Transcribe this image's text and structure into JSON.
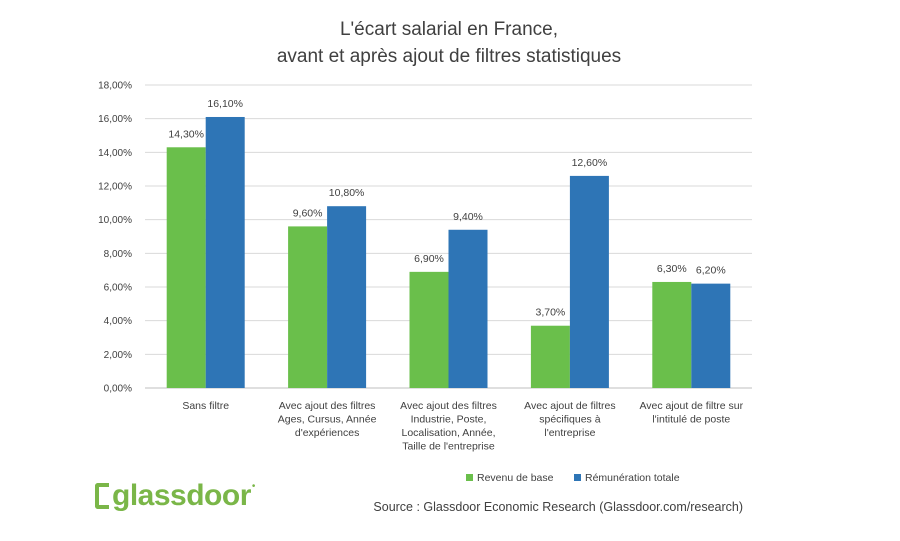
{
  "chart_data": {
    "type": "bar",
    "title_lines": [
      "L'écart salarial en France,",
      "avant et après ajout de filtres statistiques"
    ],
    "categories": [
      [
        "Sans filtre"
      ],
      [
        "Avec ajout des filtres",
        "Ages, Cursus, Année",
        "d'expériences"
      ],
      [
        "Avec ajout des filtres",
        "Industrie, Poste,",
        "Localisation, Année,",
        "Taille de l'entreprise"
      ],
      [
        "Avec ajout de filtres",
        "spécifiques à",
        "l'entreprise"
      ],
      [
        "Avec ajout de filtre sur",
        "l'intitulé de poste"
      ]
    ],
    "series": [
      {
        "name": "Revenu de base",
        "color": "#6abf4b",
        "values": [
          14.3,
          9.6,
          6.9,
          3.7,
          6.3
        ],
        "labels": [
          "14,30%",
          "9,60%",
          "6,90%",
          "3,70%",
          "6,30%"
        ]
      },
      {
        "name": "Rémunération totale",
        "color": "#2e75b6",
        "values": [
          16.1,
          10.8,
          9.4,
          12.6,
          6.2
        ],
        "labels": [
          "16,10%",
          "10,80%",
          "9,40%",
          "12,60%",
          "6,20%"
        ]
      }
    ],
    "ylim": [
      0,
      18
    ],
    "yticks": [
      0,
      2,
      4,
      6,
      8,
      10,
      12,
      14,
      16,
      18
    ],
    "ytick_labels": [
      "0,00%",
      "2,00%",
      "4,00%",
      "6,00%",
      "8,00%",
      "10,00%",
      "12,00%",
      "14,00%",
      "16,00%",
      "18,00%"
    ],
    "grid": true,
    "legend_position": "bottom-right"
  },
  "logo": {
    "word": "glassdoor",
    "mark": "bracket-icon"
  },
  "source": "Source : Glassdoor Economic Research (Glassdoor.com/research)"
}
